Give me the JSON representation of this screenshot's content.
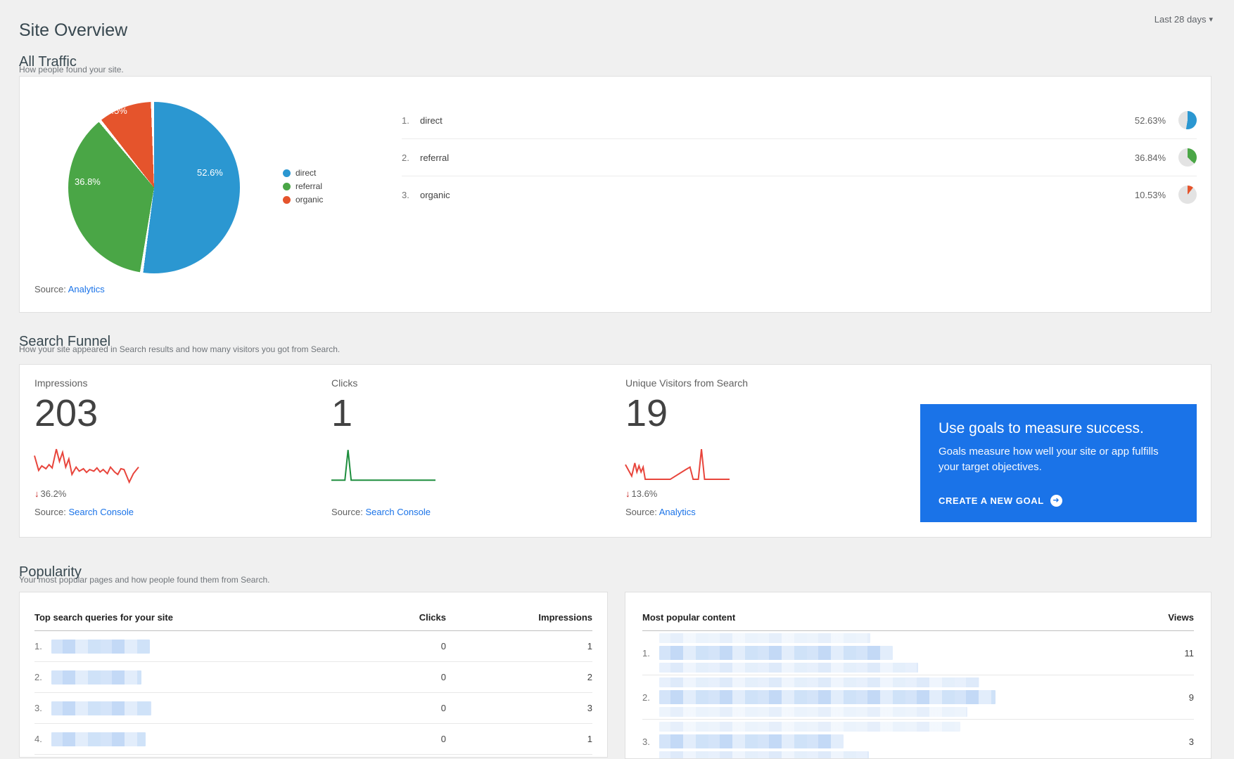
{
  "page": {
    "title": "Site Overview",
    "date_range": "Last 28 days"
  },
  "icons": {
    "caret_down": "▾",
    "down_arrow": "↓",
    "cta_arrow": "➜"
  },
  "common": {
    "source_label": "Source:"
  },
  "all_traffic": {
    "heading": "All Traffic",
    "subheading": "How people found your site.",
    "legend": [
      "direct",
      "referral",
      "organic"
    ],
    "rows": [
      {
        "rank": "1.",
        "label": "direct",
        "percent": "52.63%"
      },
      {
        "rank": "2.",
        "label": "referral",
        "percent": "36.84%"
      },
      {
        "rank": "3.",
        "label": "organic",
        "percent": "10.53%"
      }
    ],
    "source_link": "Analytics"
  },
  "search_funnel": {
    "heading": "Search Funnel",
    "subheading": "How your site appeared in Search results and how many visitors you got from Search.",
    "metrics": [
      {
        "label": "Impressions",
        "value": "203",
        "delta": "36.2%",
        "source_link": "Search Console"
      },
      {
        "label": "Clicks",
        "value": "1",
        "source_link": "Search Console"
      },
      {
        "label": "Unique Visitors from Search",
        "value": "19",
        "delta": "13.6%",
        "source_link": "Analytics"
      }
    ],
    "goal_card": {
      "title": "Use goals to measure success.",
      "body": "Goals measure how well your site or app fulfills your target objectives.",
      "cta": "CREATE A NEW GOAL",
      "bg_color": "#1a73e8"
    }
  },
  "popularity": {
    "heading": "Popularity",
    "subheading": "Your most popular pages and how people found them from Search.",
    "queries_table": {
      "title": "Top search queries for your site",
      "col_clicks": "Clicks",
      "col_impressions": "Impressions",
      "rows": [
        {
          "rank": "1.",
          "clicks": "0",
          "impressions": "1"
        },
        {
          "rank": "2.",
          "clicks": "0",
          "impressions": "2"
        },
        {
          "rank": "3.",
          "clicks": "0",
          "impressions": "3"
        },
        {
          "rank": "4.",
          "clicks": "0",
          "impressions": "1"
        }
      ]
    },
    "content_table": {
      "title": "Most popular content",
      "col_views": "Views",
      "rows": [
        {
          "rank": "1.",
          "views": "11"
        },
        {
          "rank": "2.",
          "views": "9"
        },
        {
          "rank": "3.",
          "views": "3"
        }
      ]
    }
  },
  "chart_data": [
    {
      "type": "pie",
      "title": "All Traffic",
      "labels": [
        "direct",
        "referral",
        "organic"
      ],
      "values": [
        52.63,
        36.84,
        10.53
      ],
      "slice_labels": [
        "52.6%",
        "36.8%",
        "10.5%"
      ],
      "colors": [
        "#2b97d1",
        "#4aa646",
        "#e5542c"
      ],
      "legend_position": "right",
      "start_angle_deg": 0,
      "direction": "clockwise"
    },
    {
      "type": "line",
      "title": "Impressions sparkline",
      "color": "#e8453c",
      "y_normalized_svg": true,
      "points": [
        [
          0,
          30
        ],
        [
          4,
          66
        ],
        [
          7,
          55
        ],
        [
          11,
          62
        ],
        [
          14,
          52
        ],
        [
          17,
          60
        ],
        [
          21,
          14
        ],
        [
          24,
          44
        ],
        [
          27,
          22
        ],
        [
          30,
          58
        ],
        [
          33,
          38
        ],
        [
          36,
          76
        ],
        [
          40,
          58
        ],
        [
          43,
          68
        ],
        [
          47,
          62
        ],
        [
          50,
          71
        ],
        [
          53,
          64
        ],
        [
          57,
          68
        ],
        [
          60,
          60
        ],
        [
          63,
          70
        ],
        [
          66,
          64
        ],
        [
          70,
          74
        ],
        [
          73,
          58
        ],
        [
          77,
          70
        ],
        [
          80,
          76
        ],
        [
          83,
          62
        ],
        [
          86,
          64
        ],
        [
          91,
          95
        ],
        [
          95,
          74
        ],
        [
          100,
          58
        ]
      ]
    },
    {
      "type": "line",
      "title": "Clicks sparkline",
      "color": "#1e8e3e",
      "y_normalized_svg": true,
      "points": [
        [
          0,
          90
        ],
        [
          13,
          90
        ],
        [
          16,
          16
        ],
        [
          19,
          90
        ],
        [
          100,
          90
        ]
      ]
    },
    {
      "type": "line",
      "title": "Unique Visitors from Search sparkline",
      "color": "#e8453c",
      "y_normalized_svg": true,
      "points": [
        [
          0,
          52
        ],
        [
          3,
          66
        ],
        [
          6,
          80
        ],
        [
          9,
          48
        ],
        [
          11,
          70
        ],
        [
          13,
          55
        ],
        [
          15,
          70
        ],
        [
          17,
          58
        ],
        [
          19,
          88
        ],
        [
          43,
          88
        ],
        [
          58,
          64
        ],
        [
          62,
          58
        ],
        [
          65,
          88
        ],
        [
          70,
          88
        ],
        [
          73,
          14
        ],
        [
          76,
          88
        ],
        [
          100,
          88
        ]
      ]
    }
  ]
}
